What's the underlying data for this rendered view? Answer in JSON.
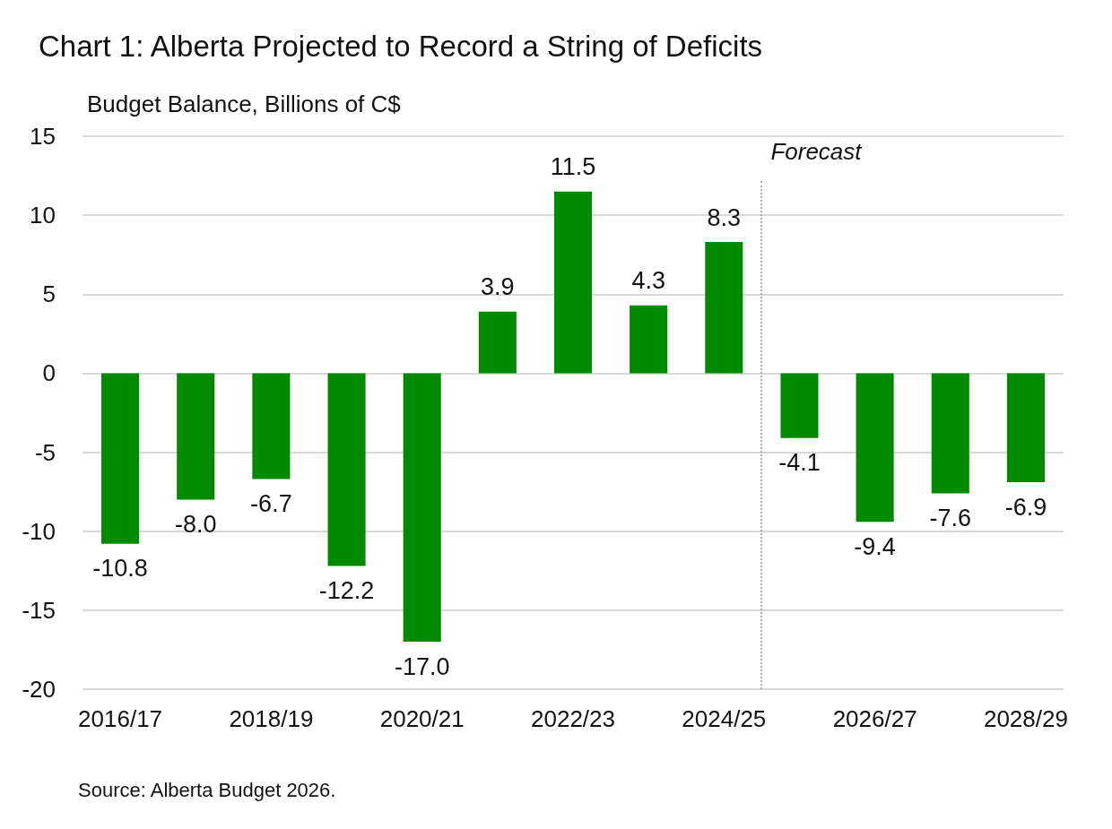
{
  "chart_data": {
    "type": "bar",
    "title": "Chart 1: Alberta Projected to Record a String of Deficits",
    "ylabel": "Budget Balance, Billions of C$",
    "categories": [
      "2016/17",
      null,
      "2018/19",
      null,
      "2020/21",
      null,
      "2022/23",
      null,
      "2024/25",
      null,
      "2026/27",
      null,
      "2028/29"
    ],
    "values": [
      -10.8,
      -8.0,
      -6.7,
      -12.2,
      -17.0,
      3.9,
      11.5,
      4.3,
      8.3,
      -4.1,
      -9.4,
      -7.6,
      -6.9
    ],
    "value_labels": [
      "-10.8",
      "-8.0",
      "-6.7",
      "-12.2",
      "-17.0",
      "3.9",
      "11.5",
      "4.3",
      "8.3",
      "-4.1",
      "-9.4",
      "-7.6",
      "-6.9"
    ],
    "color": "#008a00",
    "ylim": [
      -20,
      15
    ],
    "yticks": [
      -20,
      -15,
      -10,
      -5,
      0,
      5,
      10,
      15
    ],
    "grid": "y",
    "ref_lines": [
      {
        "axis": "x",
        "value": "2024/25",
        "label": "Forecast",
        "line_style": "dotted",
        "color": "#aaaaaa"
      }
    ],
    "annotations": [
      "Source: Alberta Budget 2026."
    ]
  }
}
